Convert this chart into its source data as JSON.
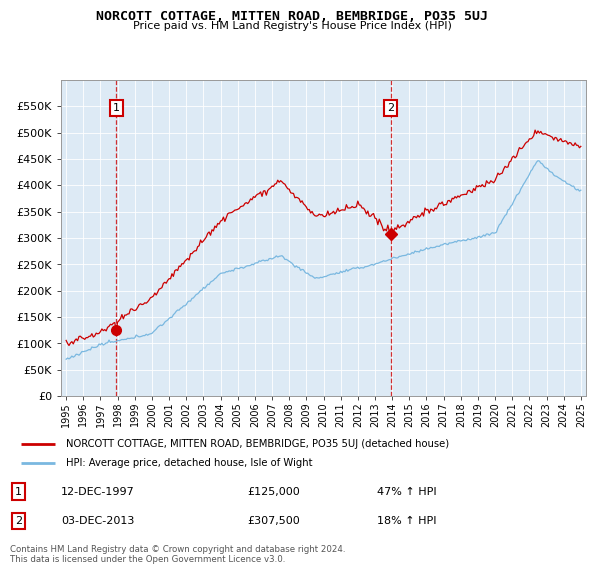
{
  "title": "NORCOTT COTTAGE, MITTEN ROAD, BEMBRIDGE, PO35 5UJ",
  "subtitle": "Price paid vs. HM Land Registry's House Price Index (HPI)",
  "legend_line1": "NORCOTT COTTAGE, MITTEN ROAD, BEMBRIDGE, PO35 5UJ (detached house)",
  "legend_line2": "HPI: Average price, detached house, Isle of Wight",
  "annotation1_label": "1",
  "annotation1_date": "12-DEC-1997",
  "annotation1_price": "£125,000",
  "annotation1_hpi": "47% ↑ HPI",
  "annotation2_label": "2",
  "annotation2_date": "03-DEC-2013",
  "annotation2_price": "£307,500",
  "annotation2_hpi": "18% ↑ HPI",
  "footer": "Contains HM Land Registry data © Crown copyright and database right 2024.\nThis data is licensed under the Open Government Licence v3.0.",
  "hpi_color": "#7ab8e0",
  "price_color": "#cc0000",
  "dot_color": "#cc0000",
  "background_color": "#ddeaf5",
  "ylim": [
    0,
    600000
  ],
  "yticks": [
    0,
    50000,
    100000,
    150000,
    200000,
    250000,
    300000,
    350000,
    400000,
    450000,
    500000,
    550000
  ],
  "year_start": 1995,
  "year_end": 2025,
  "sale1_year": 1997.92,
  "sale1_price": 125000,
  "sale2_year": 2013.92,
  "sale2_price": 307500,
  "vline_color": "#cc0000"
}
